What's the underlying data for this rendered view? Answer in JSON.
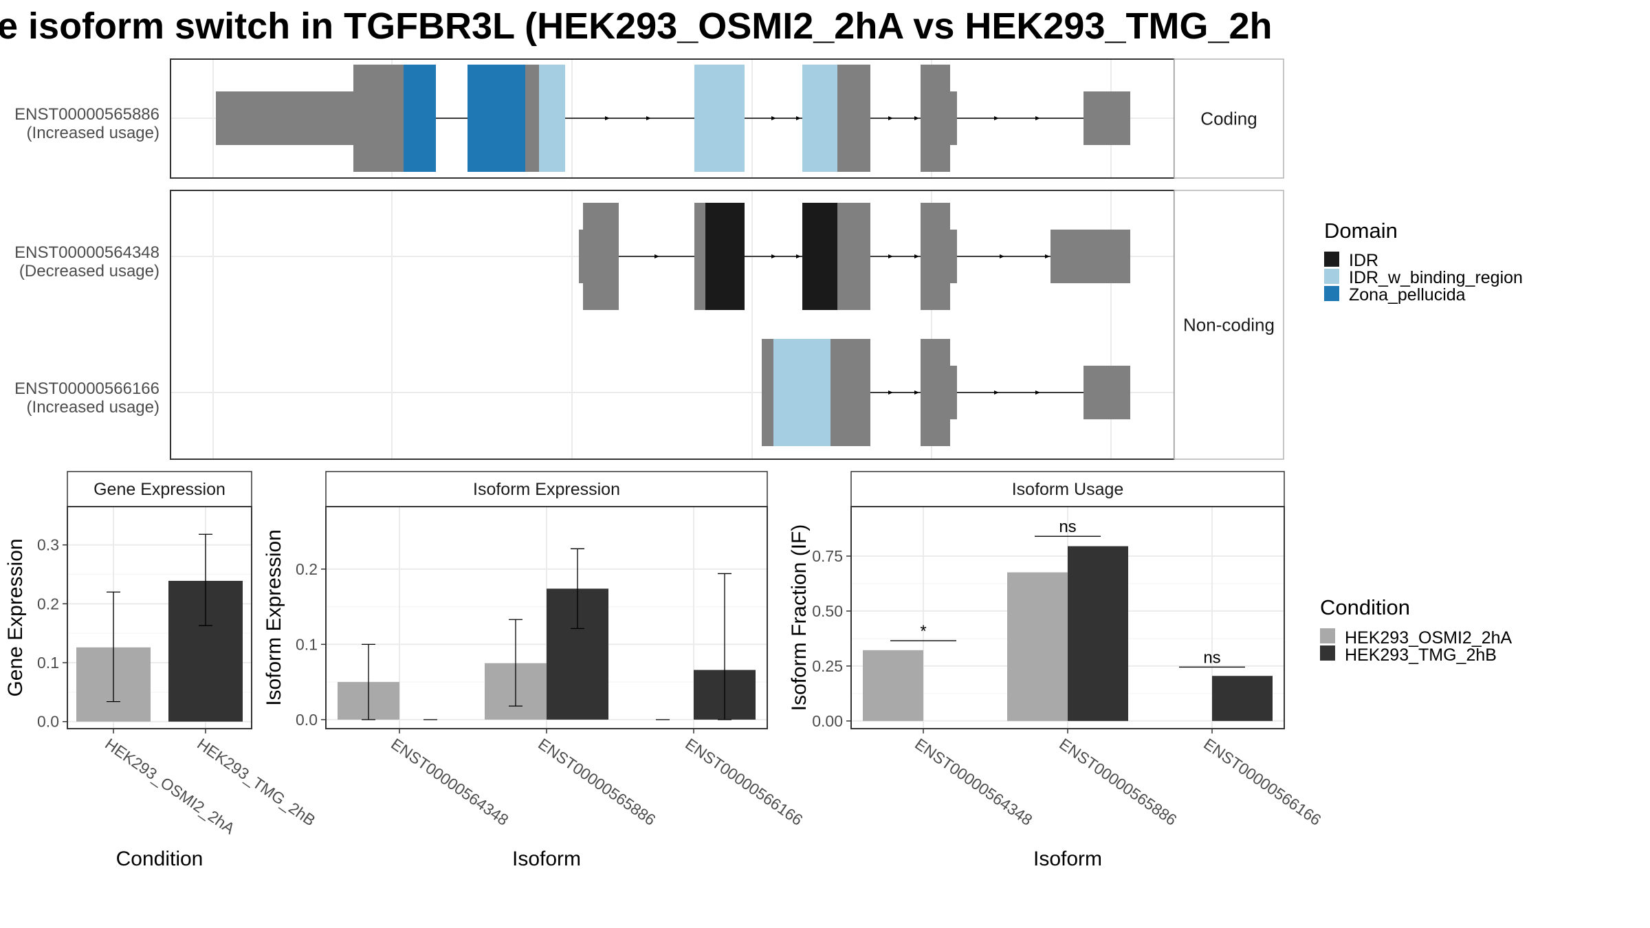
{
  "title": "e isoform switch in TGFBR3L (HEK293_OSMI2_2hA vs HEK293_TMG_2h",
  "colors": {
    "exon": "#808080",
    "IDR": "#1a1a1a",
    "IDR_w_binding_region": "#a6cee3",
    "Zona_pellucida": "#1f78b4",
    "HEK293_OSMI2_2hA": "#a9a9a9",
    "HEK293_TMG_2hB": "#333333",
    "strip_fill": "#ffffff",
    "grid": "#ebebeb",
    "panel_border": "#333333",
    "text_dark": "#1a1a1a",
    "text_axis": "#4d4d4d"
  },
  "transcripts": {
    "groups": [
      {
        "label": "Coding",
        "isoforms": [
          {
            "id": "ENST00000565886",
            "usage": "(Increased usage)"
          }
        ]
      },
      {
        "label": "Non-coding",
        "isoforms": [
          {
            "id": "ENST00000564348",
            "usage": "(Decreased usage)"
          },
          {
            "id": "ENST00000566166",
            "usage": "(Increased usage)"
          }
        ]
      }
    ]
  },
  "domain_legend": {
    "title": "Domain",
    "items": [
      "IDR",
      "IDR_w_binding_region",
      "Zona_pellucida"
    ]
  },
  "condition_legend": {
    "title": "Condition",
    "items": [
      "HEK293_OSMI2_2hA",
      "HEK293_TMG_2hB"
    ]
  },
  "chart_data": [
    {
      "type": "bar",
      "panel": "Gene Expression",
      "xlabel": "Condition",
      "ylabel": "Gene Expression",
      "categories": [
        "HEK293_OSMI2_2hA",
        "HEK293_TMG_2hB"
      ],
      "values": [
        0.126,
        0.239
      ],
      "error_low": [
        0.034,
        0.163
      ],
      "error_high": [
        0.22,
        0.318
      ],
      "ylim": [
        -0.012,
        0.365
      ],
      "yticks": [
        0.0,
        0.1,
        0.2,
        0.3
      ],
      "ytick_labels": [
        "0.0",
        "0.1",
        "0.2",
        "0.3"
      ],
      "grid": true
    },
    {
      "type": "bar",
      "panel": "Isoform Expression",
      "xlabel": "Isoform",
      "ylabel": "Isoform Expression",
      "categories": [
        "ENST00000564348",
        "ENST00000565886",
        "ENST00000566166"
      ],
      "series": [
        {
          "name": "HEK293_OSMI2_2hA",
          "values": [
            0.05,
            0.075,
            0.0
          ],
          "error_low": [
            0.0,
            0.018,
            0.0
          ],
          "error_high": [
            0.1,
            0.133,
            0.0
          ]
        },
        {
          "name": "HEK293_TMG_2hB",
          "values": [
            0.0,
            0.174,
            0.066
          ],
          "error_low": [
            0.0,
            0.121,
            0.0
          ],
          "error_high": [
            0.0,
            0.227,
            0.194
          ]
        }
      ],
      "ylim": [
        -0.012,
        0.283
      ],
      "yticks": [
        0.0,
        0.1,
        0.2
      ],
      "ytick_labels": [
        "0.0",
        "0.1",
        "0.2"
      ],
      "grid": true
    },
    {
      "type": "bar",
      "panel": "Isoform Usage",
      "xlabel": "Isoform",
      "ylabel": "Isoform Fraction (IF)",
      "categories": [
        "ENST00000564348",
        "ENST00000565886",
        "ENST00000566166"
      ],
      "series": [
        {
          "name": "HEK293_OSMI2_2hA",
          "values": [
            0.322,
            0.676,
            0.0
          ]
        },
        {
          "name": "HEK293_TMG_2hB",
          "values": [
            0.0,
            0.795,
            0.205
          ]
        }
      ],
      "significance": [
        "*",
        "ns",
        "ns"
      ],
      "significance_level": [
        0.365,
        0.84,
        0.245
      ],
      "ylim": [
        -0.035,
        0.975
      ],
      "yticks": [
        0.0,
        0.25,
        0.5,
        0.75
      ],
      "ytick_labels": [
        "0.00",
        "0.25",
        "0.50",
        "0.75"
      ],
      "grid": true
    }
  ]
}
